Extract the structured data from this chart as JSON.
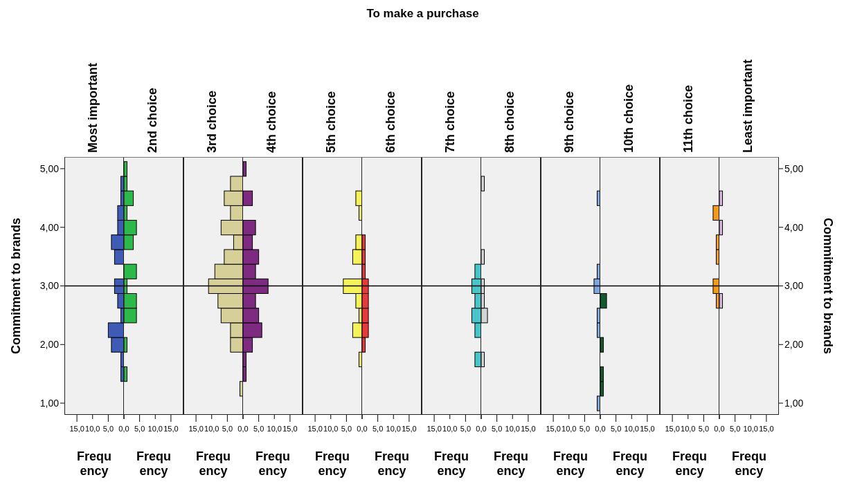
{
  "chart_data": [
    {
      "type": "histogram",
      "orientation": "horizontal",
      "title": "Most important",
      "annotations": [
        "To make a purchase"
      ],
      "xlabel": "Frequency",
      "ylabel": "Commitment to brands",
      "bins": [
        0.875,
        1.125,
        1.375,
        1.625,
        1.875,
        2.125,
        2.375,
        2.625,
        2.875,
        3.125,
        3.375,
        3.625,
        3.875,
        4.125,
        4.375,
        4.625,
        4.875,
        5.125
      ],
      "values": [
        0,
        0,
        1,
        1,
        4,
        5,
        1,
        2,
        3,
        0,
        3,
        4,
        2,
        2,
        1,
        1,
        0
      ],
      "color": "#3f5bb5",
      "xlim": [
        19,
        0
      ],
      "xticks": [
        {
          "value": 0,
          "label": "0,0"
        },
        {
          "value": 5,
          "label": "5,0"
        },
        {
          "value": 10,
          "label": "10,0"
        },
        {
          "value": 15,
          "label": "15,0"
        }
      ],
      "ylim": [
        0.8,
        5.2
      ],
      "yticks": [
        {
          "value": 1,
          "label": "1,00"
        },
        {
          "value": 2,
          "label": "2,00"
        },
        {
          "value": 3,
          "label": "3,00"
        },
        {
          "value": 4,
          "label": "4,00"
        },
        {
          "value": 5,
          "label": "5,00"
        }
      ],
      "ref_lines": [
        {
          "axis": "y",
          "value": 3,
          "color": "#000000"
        }
      ]
    },
    {
      "type": "histogram",
      "orientation": "horizontal",
      "title": "2nd choice",
      "xlabel": "Frequency",
      "bins": [
        0.875,
        1.125,
        1.375,
        1.625,
        1.875,
        2.125,
        2.375,
        2.625,
        2.875,
        3.125,
        3.375,
        3.625,
        3.875,
        4.125,
        4.375,
        4.625,
        4.875,
        5.125
      ],
      "values": [
        0,
        0,
        1,
        0,
        1,
        0,
        4,
        4,
        1,
        4,
        0,
        3,
        4,
        1,
        3,
        1,
        1
      ],
      "color": "#2db84a",
      "xlim": [
        0,
        19
      ],
      "xticks": [
        {
          "value": 0,
          "label": null
        },
        {
          "value": 5,
          "label": "5,0"
        },
        {
          "value": 10,
          "label": "10,0"
        },
        {
          "value": 15,
          "label": "15,0"
        }
      ],
      "ylim": [
        0.8,
        5.2
      ],
      "tick_labels": "x",
      "ref_lines": [
        {
          "axis": "y",
          "value": 3,
          "color": "#000000"
        }
      ]
    },
    {
      "type": "histogram",
      "orientation": "horizontal",
      "title": "3rd choice",
      "xlabel": "Frequency",
      "bins": [
        0.875,
        1.125,
        1.375,
        1.625,
        1.875,
        2.125,
        2.375,
        2.625,
        2.875,
        3.125,
        3.375,
        3.625,
        3.875,
        4.125,
        4.375,
        4.625,
        4.875,
        5.125
      ],
      "values": [
        0,
        1,
        0,
        0,
        4,
        4,
        7,
        8,
        11,
        9,
        6,
        3,
        7,
        4,
        6,
        4,
        0
      ],
      "color": "#d6cf98",
      "xlim": [
        19,
        0
      ],
      "xticks": [
        {
          "value": 0,
          "label": "0,0"
        },
        {
          "value": 5,
          "label": "5,0"
        },
        {
          "value": 10,
          "label": "10,0"
        },
        {
          "value": 15,
          "label": "15,0"
        }
      ],
      "ylim": [
        0.8,
        5.2
      ],
      "tick_labels": "x",
      "ref_lines": [
        {
          "axis": "y",
          "value": 3,
          "color": "#000000"
        }
      ]
    },
    {
      "type": "histogram",
      "orientation": "horizontal",
      "title": "4th choice",
      "xlabel": "Frequency",
      "bins": [
        0.875,
        1.125,
        1.375,
        1.625,
        1.875,
        2.125,
        2.375,
        2.625,
        2.875,
        3.125,
        3.375,
        3.625,
        3.875,
        4.125,
        4.375,
        4.625,
        4.875,
        5.125
      ],
      "values": [
        0,
        0,
        1,
        1,
        3,
        6,
        5,
        4,
        8,
        4,
        5,
        3,
        4,
        0,
        3,
        0,
        1
      ],
      "color": "#7d2a80",
      "xlim": [
        0,
        19
      ],
      "xticks": [
        {
          "value": 0,
          "label": null
        },
        {
          "value": 5,
          "label": "5,0"
        },
        {
          "value": 10,
          "label": "10,0"
        },
        {
          "value": 15,
          "label": "15,0"
        }
      ],
      "ylim": [
        0.8,
        5.2
      ],
      "tick_labels": "x",
      "ref_lines": [
        {
          "axis": "y",
          "value": 3,
          "color": "#000000"
        }
      ]
    },
    {
      "type": "histogram",
      "orientation": "horizontal",
      "title": "5th choice",
      "xlabel": "Frequency",
      "bins": [
        0.875,
        1.125,
        1.375,
        1.625,
        1.875,
        2.125,
        2.375,
        2.625,
        2.875,
        3.125,
        3.375,
        3.625,
        3.875,
        4.125,
        4.375,
        4.625,
        4.875,
        5.125
      ],
      "values": [
        0,
        0,
        0,
        1,
        0,
        3,
        1,
        2,
        6,
        0,
        3,
        2,
        0,
        1,
        2,
        0,
        0
      ],
      "color": "#f5f25a",
      "xlim": [
        19,
        0
      ],
      "xticks": [
        {
          "value": 0,
          "label": "0,0"
        },
        {
          "value": 5,
          "label": "5,0"
        },
        {
          "value": 10,
          "label": "10,0"
        },
        {
          "value": 15,
          "label": "15,0"
        }
      ],
      "ylim": [
        0.8,
        5.2
      ],
      "tick_labels": "x",
      "ref_lines": [
        {
          "axis": "y",
          "value": 3,
          "color": "#000000"
        }
      ]
    },
    {
      "type": "histogram",
      "orientation": "horizontal",
      "title": "6th choice",
      "xlabel": "Frequency",
      "bins": [
        0.875,
        1.125,
        1.375,
        1.625,
        1.875,
        2.125,
        2.375,
        2.625,
        2.875,
        3.125,
        3.375,
        3.625,
        3.875,
        4.125,
        4.375,
        4.625,
        4.875,
        5.125
      ],
      "values": [
        0,
        0,
        0,
        0,
        1,
        2,
        2,
        2,
        2,
        1,
        1,
        1,
        0,
        0,
        0,
        0,
        0
      ],
      "color": "#e83a3a",
      "xlim": [
        0,
        19
      ],
      "xticks": [
        {
          "value": 0,
          "label": null
        },
        {
          "value": 5,
          "label": "5,0"
        },
        {
          "value": 10,
          "label": "10,0"
        },
        {
          "value": 15,
          "label": "15,0"
        }
      ],
      "ylim": [
        0.8,
        5.2
      ],
      "tick_labels": "x",
      "ref_lines": [
        {
          "axis": "y",
          "value": 3,
          "color": "#000000"
        }
      ]
    },
    {
      "type": "histogram",
      "orientation": "horizontal",
      "title": "7th choice",
      "xlabel": "Frequency",
      "bins": [
        0.875,
        1.125,
        1.375,
        1.625,
        1.875,
        2.125,
        2.375,
        2.625,
        2.875,
        3.125,
        3.375,
        3.625,
        3.875,
        4.125,
        4.375,
        4.625,
        4.875,
        5.125
      ],
      "values": [
        0,
        0,
        0,
        2,
        0,
        2,
        3,
        2,
        3,
        2,
        0,
        0,
        0,
        0,
        0,
        0,
        0
      ],
      "color": "#48c5c8",
      "xlim": [
        19,
        0
      ],
      "xticks": [
        {
          "value": 0,
          "label": "0,0"
        },
        {
          "value": 5,
          "label": "5,0"
        },
        {
          "value": 10,
          "label": "10,0"
        },
        {
          "value": 15,
          "label": "15,0"
        }
      ],
      "ylim": [
        0.8,
        5.2
      ],
      "tick_labels": "x",
      "ref_lines": [
        {
          "axis": "y",
          "value": 3,
          "color": "#000000"
        }
      ]
    },
    {
      "type": "histogram",
      "orientation": "horizontal",
      "title": "8th choice",
      "xlabel": "Frequency",
      "bins": [
        0.875,
        1.125,
        1.375,
        1.625,
        1.875,
        2.125,
        2.375,
        2.625,
        2.875,
        3.125,
        3.375,
        3.625,
        3.875,
        4.125,
        4.375,
        4.625,
        4.875,
        5.125
      ],
      "values": [
        0,
        0,
        0,
        1,
        0,
        0,
        2,
        1,
        1,
        0,
        1,
        0,
        0,
        0,
        0,
        1,
        0
      ],
      "color": "#d4d4d4",
      "xlim": [
        0,
        19
      ],
      "xticks": [
        {
          "value": 0,
          "label": null
        },
        {
          "value": 5,
          "label": "5,0"
        },
        {
          "value": 10,
          "label": "10,0"
        },
        {
          "value": 15,
          "label": "15,0"
        }
      ],
      "ylim": [
        0.8,
        5.2
      ],
      "tick_labels": "x",
      "ref_lines": [
        {
          "axis": "y",
          "value": 3,
          "color": "#000000"
        }
      ]
    },
    {
      "type": "histogram",
      "orientation": "horizontal",
      "title": "9th choice",
      "xlabel": "Frequency",
      "bins": [
        0.875,
        1.125,
        1.375,
        1.625,
        1.875,
        2.125,
        2.375,
        2.625,
        2.875,
        3.125,
        3.375,
        3.625,
        3.875,
        4.125,
        4.375,
        4.625,
        4.875,
        5.125
      ],
      "values": [
        1,
        0,
        0,
        0,
        0,
        1,
        1,
        0,
        2,
        1,
        0,
        0,
        0,
        0,
        1,
        0,
        0
      ],
      "color": "#7ba7dc",
      "xlim": [
        19,
        0
      ],
      "xticks": [
        {
          "value": 0,
          "label": "0,0"
        },
        {
          "value": 5,
          "label": "5,0"
        },
        {
          "value": 10,
          "label": "10,0"
        },
        {
          "value": 15,
          "label": "15,0"
        }
      ],
      "ylim": [
        0.8,
        5.2
      ],
      "tick_labels": "x",
      "ref_lines": [
        {
          "axis": "y",
          "value": 3,
          "color": "#000000"
        }
      ]
    },
    {
      "type": "histogram",
      "orientation": "horizontal",
      "title": "10th choice",
      "xlabel": "Frequency",
      "bins": [
        0.875,
        1.125,
        1.375,
        1.625,
        1.875,
        2.125,
        2.375,
        2.625,
        2.875,
        3.125,
        3.375,
        3.625,
        3.875,
        4.125,
        4.375,
        4.625,
        4.875,
        5.125
      ],
      "values": [
        0,
        1,
        1,
        0,
        1,
        0,
        0,
        2,
        0,
        0,
        0,
        0,
        0,
        0,
        0,
        0,
        0
      ],
      "color": "#145a30",
      "xlim": [
        0,
        19
      ],
      "xticks": [
        {
          "value": 0,
          "label": null
        },
        {
          "value": 5,
          "label": "5,0"
        },
        {
          "value": 10,
          "label": "10,0"
        },
        {
          "value": 15,
          "label": "15,0"
        }
      ],
      "ylim": [
        0.8,
        5.2
      ],
      "tick_labels": "x",
      "ref_lines": [
        {
          "axis": "y",
          "value": 3,
          "color": "#000000"
        }
      ]
    },
    {
      "type": "histogram",
      "orientation": "horizontal",
      "title": "11th choice",
      "xlabel": "Frequency",
      "bins": [
        0.875,
        1.125,
        1.375,
        1.625,
        1.875,
        2.125,
        2.375,
        2.625,
        2.875,
        3.125,
        3.375,
        3.625,
        3.875,
        4.125,
        4.375,
        4.625,
        4.875,
        5.125
      ],
      "values": [
        0,
        0,
        0,
        0,
        0,
        0,
        0,
        1,
        2,
        0,
        1,
        1,
        0,
        2,
        0,
        0,
        0
      ],
      "color": "#f39a1c",
      "xlim": [
        19,
        0
      ],
      "xticks": [
        {
          "value": 0,
          "label": "0,0"
        },
        {
          "value": 5,
          "label": "5,0"
        },
        {
          "value": 10,
          "label": "10,0"
        },
        {
          "value": 15,
          "label": "15,0"
        }
      ],
      "ylim": [
        0.8,
        5.2
      ],
      "tick_labels": "x",
      "ref_lines": [
        {
          "axis": "y",
          "value": 3,
          "color": "#000000"
        }
      ]
    },
    {
      "type": "histogram",
      "orientation": "horizontal",
      "title": "Least important",
      "xlabel": "Frequency",
      "ylabel": "Commitment to brands",
      "bins": [
        0.875,
        1.125,
        1.375,
        1.625,
        1.875,
        2.125,
        2.375,
        2.625,
        2.875,
        3.125,
        3.375,
        3.625,
        3.875,
        4.125,
        4.375,
        4.625,
        4.875,
        5.125
      ],
      "values": [
        0,
        0,
        0,
        0,
        0,
        0,
        0,
        1,
        0,
        0,
        0,
        0,
        1,
        0,
        1,
        0,
        0
      ],
      "color": "#d9b2e0",
      "xlim": [
        0,
        19
      ],
      "xticks": [
        {
          "value": 0,
          "label": null
        },
        {
          "value": 5,
          "label": "5,0"
        },
        {
          "value": 10,
          "label": "10,0"
        },
        {
          "value": 15,
          "label": "15,0"
        }
      ],
      "ylim": [
        0.8,
        5.2
      ],
      "yticks": [
        {
          "value": 1,
          "label": "1,00"
        },
        {
          "value": 2,
          "label": "2,00"
        },
        {
          "value": 3,
          "label": "3,00"
        },
        {
          "value": 4,
          "label": "4,00"
        },
        {
          "value": 5,
          "label": "5,00"
        }
      ],
      "ref_lines": [
        {
          "axis": "y",
          "value": 3,
          "color": "#000000"
        }
      ]
    }
  ]
}
